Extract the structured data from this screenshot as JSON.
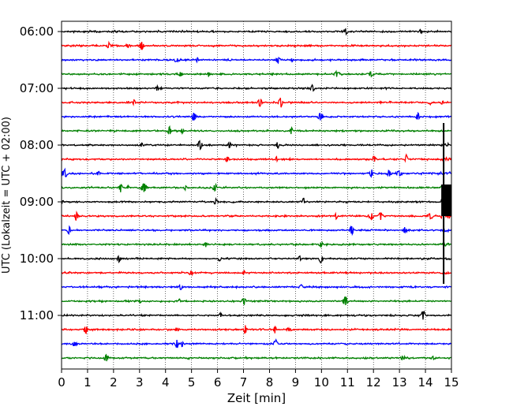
{
  "chart_data": {
    "type": "line",
    "title": "",
    "xlabel": "Zeit  [min]",
    "ylabel": "UTC (Lokalzeit = UTC + 02:00)",
    "xlim": [
      0,
      15
    ],
    "x_ticks": [
      "0",
      "1",
      "2",
      "3",
      "4",
      "5",
      "6",
      "7",
      "8",
      "9",
      "10",
      "11",
      "12",
      "13",
      "14",
      "15"
    ],
    "y_tick_labels": [
      {
        "label": "06:00",
        "row": 0
      },
      {
        "label": "07:00",
        "row": 4
      },
      {
        "label": "08:00",
        "row": 8
      },
      {
        "label": "09:00",
        "row": 12
      },
      {
        "label": "10:00",
        "row": 16
      },
      {
        "label": "11:00",
        "row": 20
      }
    ],
    "rows": 24,
    "row_interval_minutes": 15,
    "grid": "vertical dotted lines at each minute",
    "trace_colors": [
      "#000000",
      "#ff0000",
      "#0000ff",
      "#008000"
    ],
    "event": {
      "x_min": 14.7,
      "rows_affected": [
        8,
        17
      ],
      "strongest_row": 12
    }
  }
}
